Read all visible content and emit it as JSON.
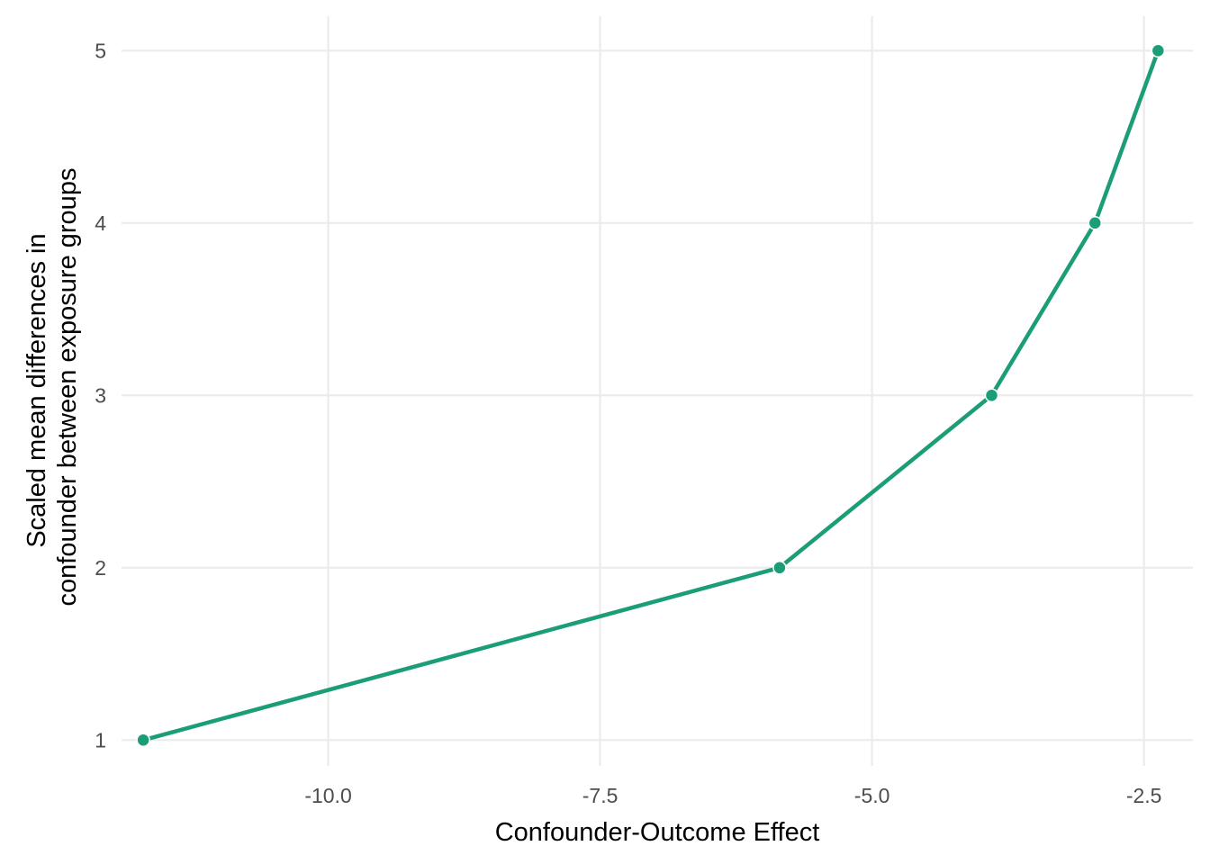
{
  "chart_data": {
    "type": "line",
    "xlabel": "Confounder-Outcome Effect",
    "ylabel_lines": [
      "Scaled mean differences in",
      "confounder between exposure groups"
    ],
    "xlim": [
      -11.9,
      -2.05
    ],
    "ylim": [
      0.85,
      5.2
    ],
    "x_ticks": [
      -10.0,
      -7.5,
      -5.0,
      -2.5
    ],
    "x_tick_labels": [
      "-10.0",
      "-7.5",
      "-5.0",
      "-2.5"
    ],
    "y_ticks": [
      1,
      2,
      3,
      4,
      5
    ],
    "y_tick_labels": [
      "1",
      "2",
      "3",
      "4",
      "5"
    ],
    "grid": true,
    "series": [
      {
        "color": "#1b9e77",
        "x": [
          -11.7,
          -5.85,
          -3.9,
          -2.95,
          -2.37
        ],
        "y": [
          1,
          2,
          3,
          4,
          5
        ]
      }
    ]
  }
}
